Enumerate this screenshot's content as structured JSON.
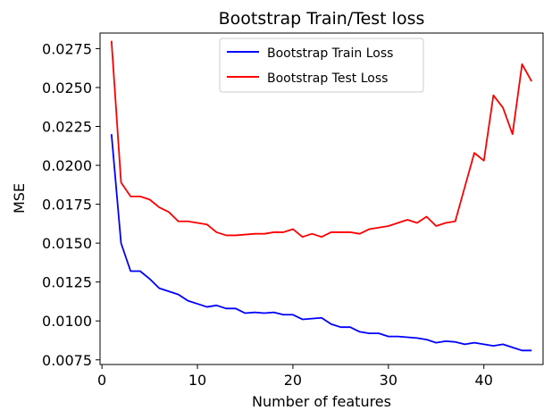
{
  "chart_data": {
    "type": "line",
    "title": "Bootstrap Train/Test loss",
    "xlabel": "Number of features",
    "ylabel": "MSE",
    "xlim": [
      -0.2,
      46.2
    ],
    "ylim": [
      0.0072,
      0.0285
    ],
    "xticks": [
      0,
      10,
      20,
      30,
      40
    ],
    "xtick_labels": [
      "0",
      "10",
      "20",
      "30",
      "40"
    ],
    "yticks": [
      0.0075,
      0.01,
      0.0125,
      0.015,
      0.0175,
      0.02,
      0.0225,
      0.025,
      0.0275
    ],
    "ytick_labels": [
      "0.0075",
      "0.0100",
      "0.0125",
      "0.0150",
      "0.0175",
      "0.0200",
      "0.0225",
      "0.0250",
      "0.0275"
    ],
    "grid": false,
    "legend_position": "upper-center",
    "x": [
      1,
      2,
      3,
      4,
      5,
      6,
      7,
      8,
      9,
      10,
      11,
      12,
      13,
      14,
      15,
      16,
      17,
      18,
      19,
      20,
      21,
      22,
      23,
      24,
      25,
      26,
      27,
      28,
      29,
      30,
      31,
      32,
      33,
      34,
      35,
      36,
      37,
      38,
      39,
      40,
      41,
      42,
      43,
      44,
      45
    ],
    "series": [
      {
        "name": "Bootstrap Train Loss",
        "color": "#0000ff",
        "values": [
          0.022,
          0.015,
          0.0132,
          0.0132,
          0.0127,
          0.0121,
          0.0119,
          0.0117,
          0.0113,
          0.0111,
          0.0109,
          0.011,
          0.0108,
          0.0108,
          0.0105,
          0.01055,
          0.0105,
          0.01055,
          0.0104,
          0.0104,
          0.0101,
          0.01015,
          0.0102,
          0.0098,
          0.0096,
          0.0096,
          0.0093,
          0.0092,
          0.0092,
          0.009,
          0.009,
          0.00895,
          0.0089,
          0.0088,
          0.0086,
          0.0087,
          0.00865,
          0.0085,
          0.0086,
          0.0085,
          0.0084,
          0.0085,
          0.0083,
          0.0081,
          0.0081
        ]
      },
      {
        "name": "Bootstrap Test Loss",
        "color": "#ff0000",
        "values": [
          0.028,
          0.0189,
          0.018,
          0.018,
          0.0178,
          0.0173,
          0.017,
          0.0164,
          0.0164,
          0.0163,
          0.0162,
          0.0157,
          0.0155,
          0.0155,
          0.01555,
          0.0156,
          0.0156,
          0.0157,
          0.0157,
          0.0159,
          0.0154,
          0.0156,
          0.0154,
          0.0157,
          0.0157,
          0.0157,
          0.0156,
          0.0159,
          0.016,
          0.0161,
          0.0163,
          0.0165,
          0.0163,
          0.0167,
          0.0161,
          0.0163,
          0.0164,
          0.0186,
          0.0208,
          0.0203,
          0.0245,
          0.0237,
          0.022,
          0.0265,
          0.0254
        ]
      }
    ]
  }
}
